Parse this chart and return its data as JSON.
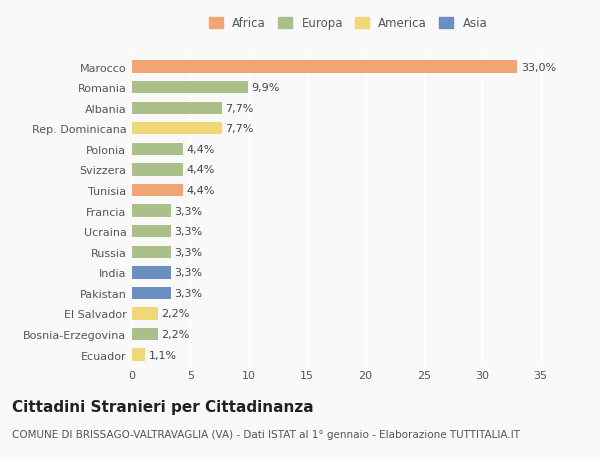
{
  "countries": [
    "Marocco",
    "Romania",
    "Albania",
    "Rep. Dominicana",
    "Polonia",
    "Svizzera",
    "Tunisia",
    "Francia",
    "Ucraina",
    "Russia",
    "India",
    "Pakistan",
    "El Salvador",
    "Bosnia-Erzegovina",
    "Ecuador"
  ],
  "values": [
    33.0,
    9.9,
    7.7,
    7.7,
    4.4,
    4.4,
    4.4,
    3.3,
    3.3,
    3.3,
    3.3,
    3.3,
    2.2,
    2.2,
    1.1
  ],
  "labels": [
    "33,0%",
    "9,9%",
    "7,7%",
    "7,7%",
    "4,4%",
    "4,4%",
    "4,4%",
    "3,3%",
    "3,3%",
    "3,3%",
    "3,3%",
    "3,3%",
    "2,2%",
    "2,2%",
    "1,1%"
  ],
  "continents": [
    "Africa",
    "Europa",
    "Europa",
    "America",
    "Europa",
    "Europa",
    "Africa",
    "Europa",
    "Europa",
    "Europa",
    "Asia",
    "Asia",
    "America",
    "Europa",
    "America"
  ],
  "colors": {
    "Africa": "#F0A575",
    "Europa": "#AABF8A",
    "America": "#F0D878",
    "Asia": "#6A8FC0"
  },
  "legend_order": [
    "Africa",
    "Europa",
    "America",
    "Asia"
  ],
  "title": "Cittadini Stranieri per Cittadinanza",
  "subtitle": "COMUNE DI BRISSAGO-VALTRAVAGLIA (VA) - Dati ISTAT al 1° gennaio - Elaborazione TUTTITALIA.IT",
  "xlim": [
    0,
    37
  ],
  "xticks": [
    0,
    5,
    10,
    15,
    20,
    25,
    30,
    35
  ],
  "background_color": "#f9f9f9",
  "bar_height": 0.6,
  "label_fontsize": 8,
  "tick_fontsize": 8,
  "title_fontsize": 11,
  "subtitle_fontsize": 7.5
}
